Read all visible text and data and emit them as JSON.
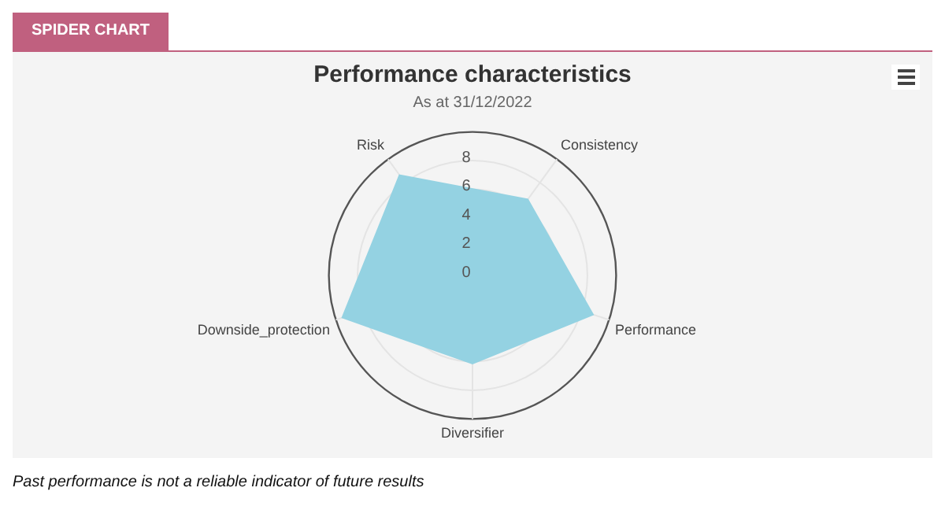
{
  "chart_data": {
    "type": "radar",
    "title": "Performance characteristics",
    "subtitle": "As at 31/12/2022",
    "categories": [
      "Risk",
      "Consistency",
      "Performance",
      "Diversifier",
      "Downside_protection"
    ],
    "series": [
      {
        "color": "#94d2e2",
        "values": [
          8.7,
          6.6,
          8.9,
          6.2,
          9.6
        ]
      }
    ],
    "ylim": [
      0,
      10
    ],
    "yticks": [
      0,
      2,
      4,
      6,
      8
    ],
    "grid": true,
    "legend": false,
    "annotations": [
      "SPIDER CHART",
      "Past performance is not a reliable indicator of future results"
    ]
  }
}
